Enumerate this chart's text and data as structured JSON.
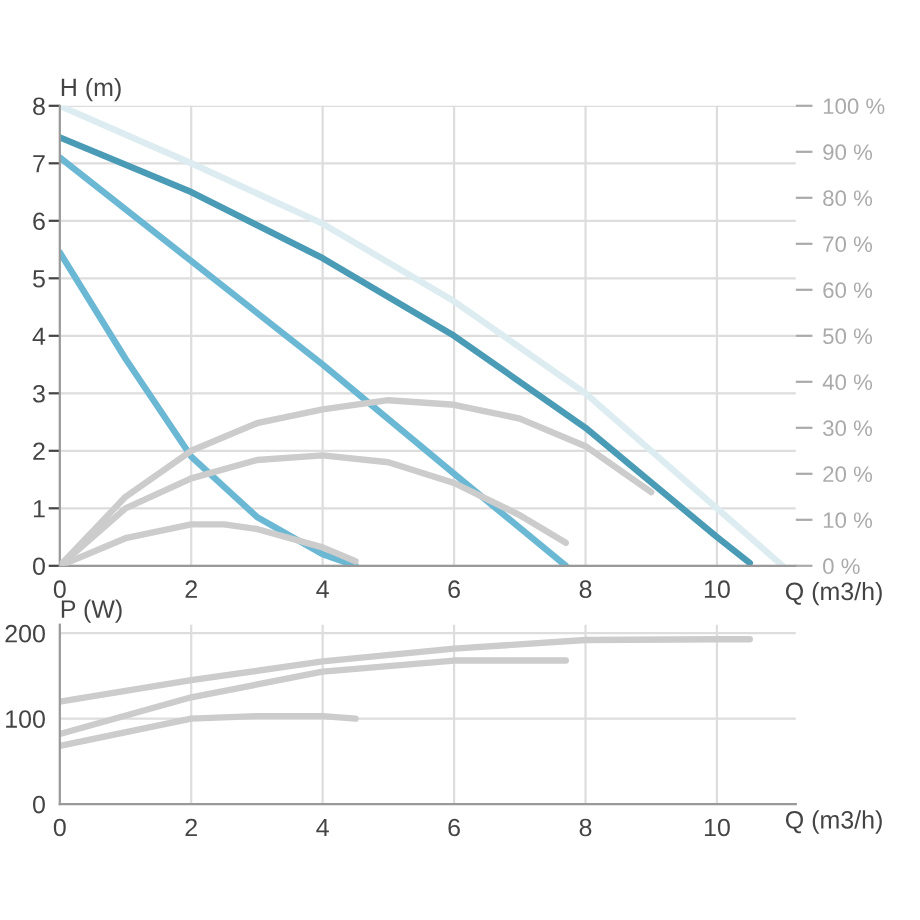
{
  "chart_data": [
    {
      "type": "line",
      "xlabel": "Q (m3/h)",
      "ylabel": "H (m)",
      "xlim": [
        0,
        11.2
      ],
      "xticks": [
        0,
        2,
        4,
        6,
        8,
        10
      ],
      "ylim": [
        0,
        8
      ],
      "yticks": [
        0,
        1,
        2,
        3,
        4,
        5,
        6,
        7,
        8
      ],
      "y2lim": [
        0,
        100
      ],
      "y2ticks": [
        {
          "value": 0,
          "label": "0 %"
        },
        {
          "value": 10,
          "label": "10 %"
        },
        {
          "value": 20,
          "label": "20 %"
        },
        {
          "value": 30,
          "label": "30 %"
        },
        {
          "value": 40,
          "label": "40 %"
        },
        {
          "value": 50,
          "label": "50 %"
        },
        {
          "value": 60,
          "label": "60 %"
        },
        {
          "value": 70,
          "label": "70 %"
        },
        {
          "value": 80,
          "label": "80 %"
        },
        {
          "value": 90,
          "label": "90 %"
        },
        {
          "value": 100,
          "label": "100 %"
        }
      ],
      "grid": true,
      "legend": false,
      "series": [
        {
          "color": "#dcecf1",
          "x": [
            0,
            2,
            4,
            6,
            8,
            10,
            11
          ],
          "values": [
            8,
            7.0,
            5.95,
            4.6,
            3.0,
            1.0,
            0
          ]
        },
        {
          "color": "#4a9bb5",
          "x": [
            0,
            2,
            4,
            6,
            8,
            10,
            10.5
          ],
          "values": [
            7.45,
            6.5,
            5.35,
            4.0,
            2.4,
            0.5,
            0.05
          ]
        },
        {
          "color": "#6bb8d4",
          "x": [
            0,
            2,
            4,
            6,
            7.7
          ],
          "values": [
            7.1,
            5.3,
            3.5,
            1.6,
            0
          ]
        },
        {
          "color": "#6bb8d4",
          "x": [
            0,
            1,
            2,
            3,
            4,
            4.5
          ],
          "values": [
            5.45,
            3.6,
            1.9,
            0.85,
            0.2,
            0
          ]
        },
        {
          "color": "#cccccc",
          "axis": "y2",
          "x": [
            0,
            1,
            2,
            3,
            4,
            5,
            6,
            7,
            8,
            9
          ],
          "values": [
            0,
            15,
            25,
            31,
            34,
            36,
            35,
            32,
            26,
            16
          ]
        },
        {
          "color": "#cccccc",
          "axis": "y2",
          "x": [
            0,
            1,
            2,
            3,
            4,
            5,
            6,
            7,
            7.7
          ],
          "values": [
            0,
            12.5,
            19,
            23,
            24,
            22.5,
            18,
            11,
            5
          ]
        },
        {
          "color": "#cccccc",
          "axis": "y2",
          "x": [
            0,
            1,
            2,
            2.5,
            3,
            4,
            4.5
          ],
          "values": [
            0,
            6,
            9,
            9,
            8,
            4,
            1
          ]
        }
      ]
    },
    {
      "type": "line",
      "xlabel": "Q (m3/h)",
      "ylabel": "P (W)",
      "xlim": [
        0,
        11.2
      ],
      "xticks": [
        0,
        2,
        4,
        6,
        8,
        10
      ],
      "ylim": [
        0,
        210
      ],
      "yticks": [
        0,
        100,
        200
      ],
      "grid": true,
      "legend": false,
      "series": [
        {
          "color": "#cccccc",
          "x": [
            0,
            2,
            4,
            6,
            8,
            10,
            10.5
          ],
          "values": [
            120,
            145,
            167,
            182,
            192,
            193,
            193
          ]
        },
        {
          "color": "#cccccc",
          "x": [
            0,
            2,
            4,
            6,
            7.7
          ],
          "values": [
            82,
            125,
            155,
            168,
            168
          ]
        },
        {
          "color": "#cccccc",
          "x": [
            0,
            2,
            3,
            4,
            4.5
          ],
          "values": [
            68,
            100,
            103,
            103,
            100
          ]
        }
      ]
    }
  ]
}
